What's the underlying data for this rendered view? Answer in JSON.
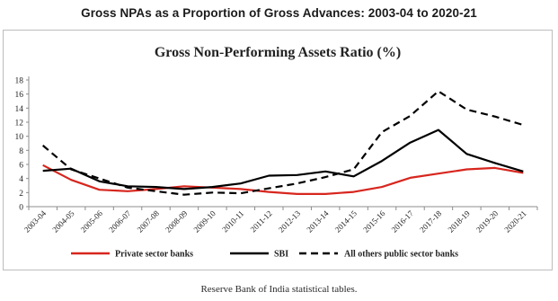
{
  "page_title": "Gross NPAs as a Proportion of Gross Advances: 2003-04 to 2020-21",
  "source": "Reserve Bank of India statistical tables.",
  "chart_data": {
    "type": "line",
    "title": "Gross Non-Performing Assets Ratio (%)",
    "xlabel": "",
    "ylabel": "",
    "ylim": [
      0,
      18
    ],
    "yticks": [
      0,
      2,
      4,
      6,
      8,
      10,
      12,
      14,
      16,
      18
    ],
    "grid": false,
    "legend_position": "bottom",
    "categories": [
      "2003-04",
      "2004-05",
      "2005-06",
      "2006-07",
      "2007-08",
      "2008-09",
      "2009-10",
      "2010-11",
      "2011-12",
      "2012-13",
      "2013-14",
      "2014-15",
      "2015-16",
      "2016-17",
      "2017-18",
      "2018-19",
      "2019-20",
      "2020-21"
    ],
    "series": [
      {
        "name": "Private sector banks",
        "color": "#d7261e",
        "dash": "solid",
        "values": [
          5.9,
          3.8,
          2.4,
          2.2,
          2.5,
          2.9,
          2.7,
          2.5,
          2.1,
          1.8,
          1.8,
          2.1,
          2.8,
          4.1,
          4.7,
          5.3,
          5.5,
          4.8
        ]
      },
      {
        "name": "SBI",
        "color": "#000000",
        "dash": "solid",
        "values": [
          5.1,
          5.4,
          3.6,
          2.9,
          2.8,
          2.5,
          2.8,
          3.3,
          4.4,
          4.5,
          5.0,
          4.3,
          6.5,
          9.1,
          10.9,
          7.5,
          6.2,
          5.0
        ]
      },
      {
        "name": "All others public sector banks",
        "color": "#000000",
        "dash": "dashed",
        "values": [
          8.7,
          5.3,
          4.0,
          2.7,
          2.2,
          1.7,
          2.0,
          1.9,
          2.6,
          3.3,
          4.2,
          5.3,
          10.6,
          12.9,
          16.4,
          13.8,
          12.8,
          11.6
        ]
      }
    ]
  }
}
